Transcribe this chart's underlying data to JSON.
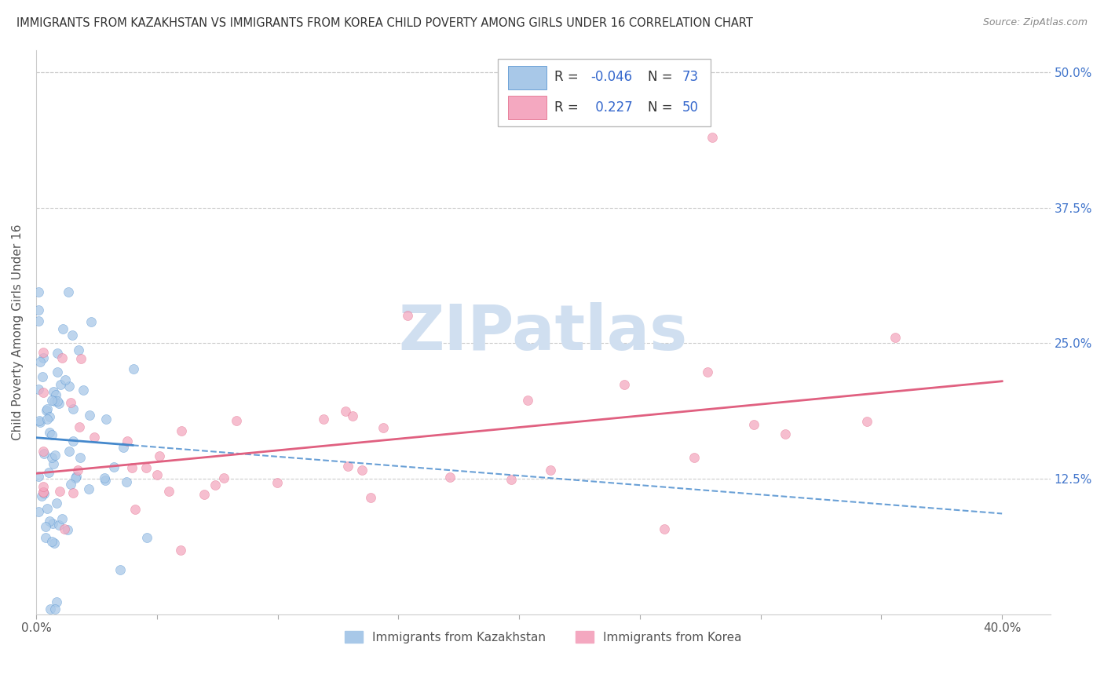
{
  "title": "IMMIGRANTS FROM KAZAKHSTAN VS IMMIGRANTS FROM KOREA CHILD POVERTY AMONG GIRLS UNDER 16 CORRELATION CHART",
  "source": "Source: ZipAtlas.com",
  "ylabel": "Child Poverty Among Girls Under 16",
  "ylim": [
    0.0,
    0.52
  ],
  "xlim": [
    0.0,
    0.42
  ],
  "ytick_vals": [
    0.0,
    0.125,
    0.25,
    0.375,
    0.5
  ],
  "ytick_labels": [
    "",
    "12.5%",
    "25.0%",
    "37.5%",
    "50.0%"
  ],
  "xtick_vals": [
    0.0,
    0.4
  ],
  "xtick_labels": [
    "0.0%",
    "40.0%"
  ],
  "color_kaz": "#a8c8e8",
  "color_kor": "#f4a8c0",
  "trendline_kaz_color": "#4488cc",
  "trendline_kor_color": "#e06080",
  "watermark": "ZIPatlas",
  "watermark_color": "#d0dff0",
  "label_kaz": "Immigrants from Kazakhstan",
  "label_kor": "Immigrants from Korea",
  "legend_r_kaz": "-0.046",
  "legend_n_kaz": "73",
  "legend_r_kor": "0.227",
  "legend_n_kor": "50",
  "text_color_r": "#3366cc",
  "text_color_n": "#3366cc",
  "text_color_label": "#333333",
  "kaz_trend_x0": 0.0,
  "kaz_trend_y0": 0.163,
  "kaz_trend_x1": 0.4,
  "kaz_trend_y1": 0.093,
  "kor_trend_x0": 0.0,
  "kor_trend_y0": 0.13,
  "kor_trend_x1": 0.4,
  "kor_trend_y1": 0.215
}
